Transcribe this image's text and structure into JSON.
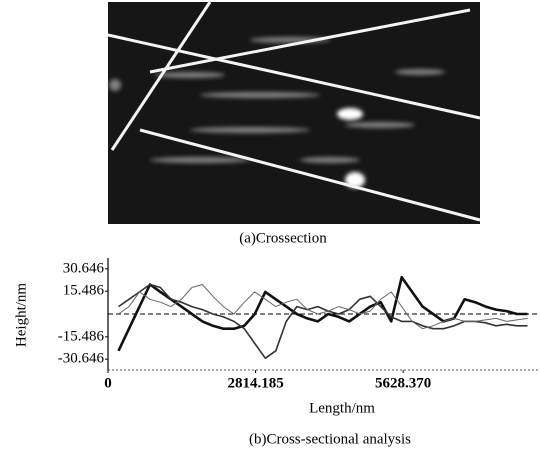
{
  "captions": [
    "(a)Crossection",
    "(b)Cross-sectional analysis"
  ],
  "chart_data": {
    "type": "line",
    "x_label": "Length/nm",
    "y_label": "Height/nm",
    "x": [
      200,
      400,
      600,
      800,
      1000,
      1200,
      1400,
      1600,
      1800,
      2000,
      2200,
      2400,
      2600,
      2800,
      3000,
      3200,
      3400,
      3600,
      3800,
      4000,
      4200,
      4400,
      4600,
      4800,
      5000,
      5200,
      5400,
      5600,
      5800,
      6000,
      6200,
      6400,
      6600,
      6800,
      7000,
      7200,
      7400,
      7600,
      7800,
      8000
    ],
    "series": [
      {
        "color": "#111111",
        "values": [
          -25,
          -10,
          5,
          20,
          15,
          10,
          5,
          0,
          -5,
          -8,
          -10,
          -10,
          -8,
          0,
          15,
          10,
          5,
          0,
          -3,
          -5,
          0,
          -2,
          -5,
          0,
          5,
          8,
          -5,
          25,
          15,
          5,
          0,
          -5,
          -3,
          10,
          8,
          5,
          3,
          2,
          0,
          0
        ]
      },
      {
        "color": "#333333",
        "values": [
          5,
          10,
          15,
          20,
          18,
          10,
          8,
          5,
          3,
          0,
          -2,
          -5,
          -10,
          -20,
          -30,
          -25,
          -5,
          5,
          3,
          5,
          2,
          0,
          3,
          10,
          12,
          5,
          -2,
          -5,
          -5,
          -8,
          -10,
          -10,
          -8,
          -5,
          -5,
          -6,
          -8,
          -7,
          -8,
          -8
        ]
      },
      {
        "color": "#666666",
        "values": [
          0,
          5,
          15,
          10,
          8,
          5,
          10,
          18,
          20,
          12,
          5,
          0,
          8,
          15,
          10,
          5,
          8,
          10,
          3,
          0,
          2,
          5,
          3,
          0,
          2,
          10,
          15,
          5,
          -5,
          -10,
          -8,
          -5,
          -3,
          -5,
          -5,
          -4,
          -3,
          -5,
          -4,
          -3
        ]
      }
    ],
    "xlim": [
      0,
      8200
    ],
    "xticks": [
      0,
      2814.185,
      {
        "value": 5628.37,
        "label": "5628.370"
      }
    ],
    "ylim": [
      -38,
      38
    ],
    "yticks": [
      30.646,
      15.486,
      -15.486,
      -30.646
    ],
    "zero_line": true
  }
}
